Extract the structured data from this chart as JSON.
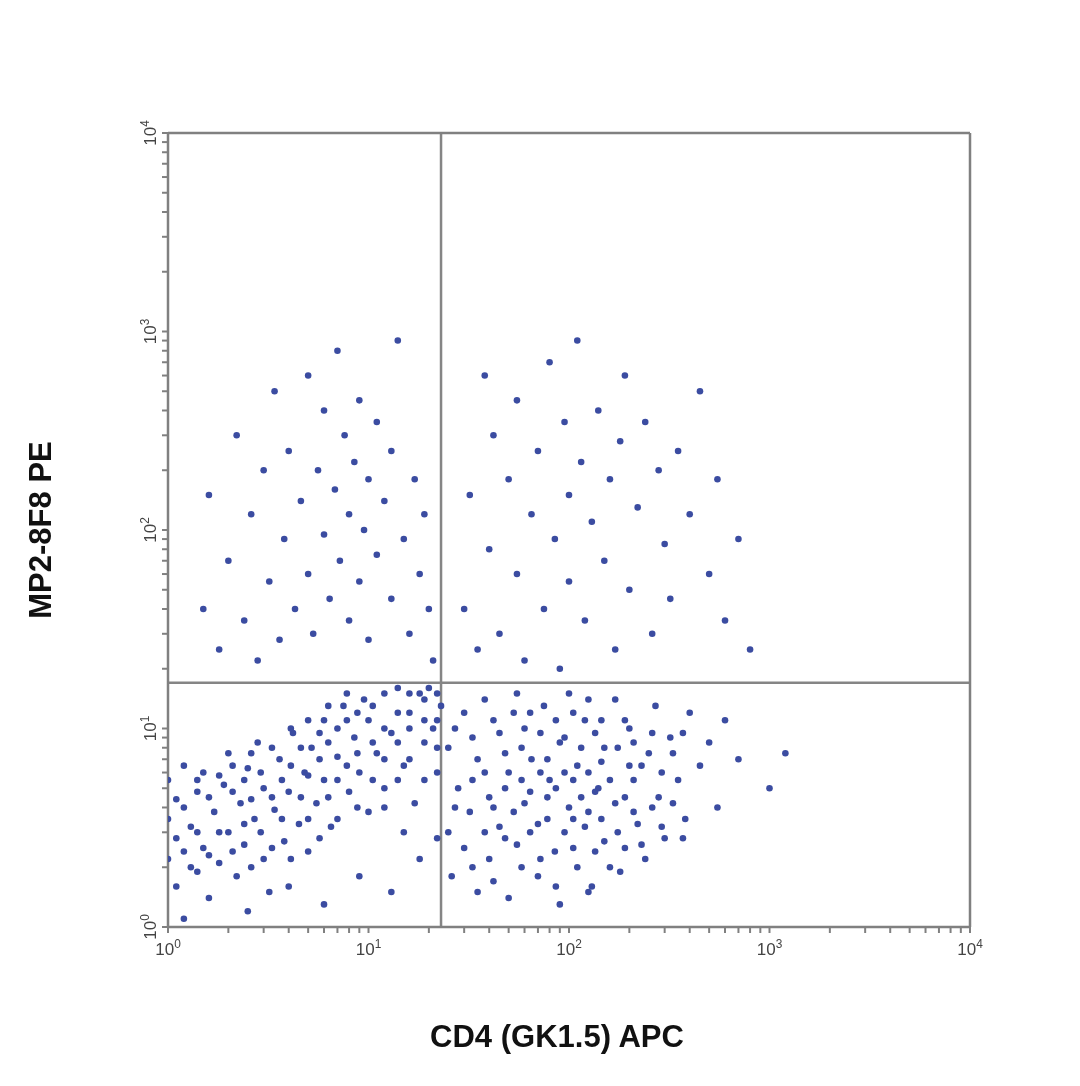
{
  "chart_data": {
    "type": "scatter",
    "xlabel": "CD4 (GK1.5) APC",
    "ylabel": "MP2-8F8 PE",
    "log": "xy",
    "marker": "circle",
    "xlim": [
      1,
      10000
    ],
    "ylim": [
      1,
      10000
    ],
    "xticks": [
      {
        "value": 1,
        "label": "10$^{0}$"
      },
      {
        "value": 2,
        "label": null
      },
      {
        "value": 3,
        "label": null
      },
      {
        "value": 4,
        "label": null
      },
      {
        "value": 5,
        "label": null
      },
      {
        "value": 6,
        "label": null
      },
      {
        "value": 7,
        "label": null
      },
      {
        "value": 8,
        "label": null
      },
      {
        "value": 9,
        "label": null
      },
      {
        "value": 10,
        "label": "10$^{1}$"
      },
      {
        "value": 20,
        "label": null
      },
      {
        "value": 30,
        "label": null
      },
      {
        "value": 40,
        "label": null
      },
      {
        "value": 50,
        "label": null
      },
      {
        "value": 60,
        "label": null
      },
      {
        "value": 70,
        "label": null
      },
      {
        "value": 80,
        "label": null
      },
      {
        "value": 90,
        "label": null
      },
      {
        "value": 100,
        "label": "10$^{2}$"
      },
      {
        "value": 200,
        "label": null
      },
      {
        "value": 300,
        "label": null
      },
      {
        "value": 400,
        "label": null
      },
      {
        "value": 500,
        "label": null
      },
      {
        "value": 600,
        "label": null
      },
      {
        "value": 700,
        "label": null
      },
      {
        "value": 800,
        "label": null
      },
      {
        "value": 900,
        "label": null
      },
      {
        "value": 1000,
        "label": "10$^{3}$"
      },
      {
        "value": 2000,
        "label": null
      },
      {
        "value": 3000,
        "label": null
      },
      {
        "value": 4000,
        "label": null
      },
      {
        "value": 5000,
        "label": null
      },
      {
        "value": 6000,
        "label": null
      },
      {
        "value": 7000,
        "label": null
      },
      {
        "value": 8000,
        "label": null
      },
      {
        "value": 9000,
        "label": null
      },
      {
        "value": 10000,
        "label": "10$^{4}$"
      }
    ],
    "yticks": [
      {
        "value": 1,
        "label": "10$^{0}$"
      },
      {
        "value": 2,
        "label": null
      },
      {
        "value": 3,
        "label": null
      },
      {
        "value": 4,
        "label": null
      },
      {
        "value": 5,
        "label": null
      },
      {
        "value": 6,
        "label": null
      },
      {
        "value": 7,
        "label": null
      },
      {
        "value": 8,
        "label": null
      },
      {
        "value": 9,
        "label": null
      },
      {
        "value": 10,
        "label": "10$^{1}$"
      },
      {
        "value": 20,
        "label": null
      },
      {
        "value": 30,
        "label": null
      },
      {
        "value": 40,
        "label": null
      },
      {
        "value": 50,
        "label": null
      },
      {
        "value": 60,
        "label": null
      },
      {
        "value": 70,
        "label": null
      },
      {
        "value": 80,
        "label": null
      },
      {
        "value": 90,
        "label": null
      },
      {
        "value": 100,
        "label": "10$^{2}$"
      },
      {
        "value": 200,
        "label": null
      },
      {
        "value": 300,
        "label": null
      },
      {
        "value": 400,
        "label": null
      },
      {
        "value": 500,
        "label": null
      },
      {
        "value": 600,
        "label": null
      },
      {
        "value": 700,
        "label": null
      },
      {
        "value": 800,
        "label": null
      },
      {
        "value": 900,
        "label": null
      },
      {
        "value": 1000,
        "label": "10$^{3}$"
      },
      {
        "value": 2000,
        "label": null
      },
      {
        "value": 3000,
        "label": null
      },
      {
        "value": 4000,
        "label": null
      },
      {
        "value": 5000,
        "label": null
      },
      {
        "value": 6000,
        "label": null
      },
      {
        "value": 7000,
        "label": null
      },
      {
        "value": 8000,
        "label": null
      },
      {
        "value": 9000,
        "label": null
      },
      {
        "value": 10000,
        "label": "10$^{4}$"
      }
    ],
    "ref_lines": [
      {
        "axis": "x",
        "value": 23,
        "color": "#858585"
      },
      {
        "axis": "y",
        "value": 17,
        "color": "#858585"
      }
    ],
    "series": [
      {
        "color": "#3b4ca1",
        "x": [
          1.0,
          1.0,
          1.0,
          1.1,
          1.1,
          1.1,
          1.2,
          1.3,
          1.3,
          1.4,
          1.5,
          1.5,
          1.6,
          1.7,
          1.8,
          1.9,
          2.0,
          2.0,
          2.2,
          2.3,
          2.4,
          2.5,
          2.7,
          2.8,
          3.0,
          3.0,
          3.2,
          3.4,
          3.6,
          3.8,
          4.0,
          4.2,
          4.5,
          4.8,
          5.0,
          5.2,
          5.5,
          6.0,
          6.0,
          6.5,
          7.0,
          7.5,
          8.0,
          8.5,
          9.0,
          9.5,
          10,
          10,
          11,
          12,
          12,
          13,
          14,
          15,
          16,
          17,
          18,
          19,
          20,
          21,
          22,
          23,
          1.2,
          2.5,
          4.0,
          6.0,
          9,
          13,
          18,
          22,
          15,
          1.2,
          1.2,
          1.4,
          1.4,
          1.4,
          1.6,
          1.6,
          1.8,
          1.8,
          2.1,
          2.1,
          2.1,
          2.4,
          2.4,
          2.6,
          2.6,
          2.6,
          2.9,
          2.9,
          3.3,
          3.3,
          3.3,
          3.7,
          3.7,
          4.1,
          4.1,
          4.1,
          4.6,
          4.6,
          5.0,
          5.0,
          5.0,
          5.7,
          5.7,
          5.7,
          6.3,
          6.3,
          6.3,
          7.0,
          7.0,
          7.0,
          7.8,
          7.8,
          7.8,
          8.8,
          8.8,
          8.8,
          10.5,
          10.5,
          10.5,
          12,
          12,
          12,
          14,
          14,
          14,
          16,
          16,
          16,
          19,
          19,
          19,
          22,
          22,
          22
        ],
        "values": [
          2.2,
          3.5,
          5.5,
          1.6,
          2.8,
          4.4,
          6.5,
          2.0,
          3.2,
          4.8,
          2.5,
          6.0,
          1.4,
          3.8,
          2.1,
          5.2,
          7.5,
          3.0,
          1.8,
          4.2,
          2.6,
          6.3,
          3.5,
          8.5,
          2.2,
          5.0,
          1.5,
          3.9,
          7.0,
          2.7,
          4.8,
          9.5,
          3.3,
          6.0,
          2.4,
          8.0,
          4.2,
          11,
          5.5,
          3.2,
          7.2,
          13,
          4.8,
          9.0,
          6.0,
          14,
          3.8,
          11,
          7.5,
          15,
          5.0,
          9.5,
          16,
          6.5,
          12,
          4.2,
          15,
          8.5,
          16,
          10,
          6.0,
          13,
          1.1,
          1.2,
          1.6,
          1.3,
          1.8,
          1.5,
          2.2,
          2.8,
          3.0,
          2.4,
          4.0,
          1.9,
          3.0,
          5.5,
          2.3,
          4.5,
          3.0,
          5.8,
          2.4,
          4.8,
          6.5,
          3.3,
          5.5,
          2.0,
          4.4,
          7.5,
          3.0,
          6.0,
          2.5,
          4.5,
          8.0,
          3.5,
          5.5,
          2.2,
          6.5,
          10,
          4.5,
          8.0,
          3.5,
          5.8,
          11,
          2.8,
          7.0,
          9.5,
          4.5,
          8.5,
          13,
          3.5,
          5.5,
          10,
          6.5,
          11,
          15,
          4.0,
          7.5,
          12,
          5.5,
          8.5,
          13,
          4.0,
          7.0,
          10,
          5.5,
          8.5,
          12,
          7.0,
          10,
          15,
          5.5,
          11,
          14,
          8.0,
          11,
          15
        ]
      },
      {
        "color": "#3b4ca1",
        "x": [
          1.5,
          1.6,
          1.8,
          2.0,
          2.2,
          2.4,
          2.6,
          2.8,
          3.0,
          3.2,
          3.4,
          3.6,
          3.8,
          4.0,
          4.3,
          4.6,
          5.0,
          5.0,
          5.3,
          5.6,
          6.0,
          6.0,
          6.4,
          6.8,
          7.0,
          7.2,
          7.6,
          8.0,
          8.0,
          8.5,
          9.0,
          9.0,
          9.5,
          10,
          10,
          11,
          11,
          12,
          13,
          13,
          14,
          15,
          16,
          17,
          18,
          19,
          20,
          21
        ],
        "values": [
          40,
          150,
          25,
          70,
          300,
          35,
          120,
          22,
          200,
          55,
          500,
          28,
          90,
          250,
          40,
          140,
          600,
          60,
          30,
          200,
          95,
          400,
          45,
          160,
          800,
          70,
          300,
          120,
          35,
          220,
          55,
          450,
          100,
          180,
          28,
          75,
          350,
          140,
          45,
          250,
          900,
          90,
          30,
          180,
          60,
          120,
          40,
          22
        ]
      },
      {
        "color": "#3b4ca1",
        "x": [
          25,
          25,
          26,
          28,
          30,
          30,
          32,
          35,
          35,
          38,
          40,
          40,
          45,
          45,
          50,
          50,
          55,
          55,
          60,
          60,
          65,
          70,
          70,
          75,
          80,
          85,
          90,
          90,
          100,
          100,
          110,
          110,
          120,
          120,
          130,
          140,
          150,
          150,
          170,
          170,
          180,
          200,
          200,
          220,
          240,
          250,
          270,
          280,
          300,
          320,
          350,
          380,
          400,
          450,
          500,
          550,
          600,
          700,
          1000,
          1200,
          27,
          27,
          33,
          33,
          33,
          38,
          38,
          42,
          42,
          42,
          48,
          48,
          48,
          53,
          53,
          58,
          58,
          58,
          64,
          64,
          64,
          72,
          72,
          72,
          78,
          78,
          78,
          86,
          86,
          86,
          95,
          95,
          95,
          105,
          105,
          105,
          105,
          115,
          115,
          125,
          125,
          125,
          125,
          135,
          135,
          135,
          145,
          145,
          145,
          160,
          160,
          175,
          175,
          190,
          190,
          190,
          210,
          210,
          210,
          230,
          230,
          260,
          260,
          290,
          290,
          330,
          330,
          370,
          370
        ],
        "values": [
          3.0,
          8.0,
          1.8,
          5.0,
          12,
          2.5,
          3.8,
          7.0,
          1.5,
          14,
          4.5,
          2.2,
          9.5,
          3.2,
          6.0,
          1.4,
          15,
          2.6,
          4.2,
          10,
          7.0,
          1.8,
          3.3,
          13,
          5.5,
          2.4,
          8.5,
          1.3,
          4.0,
          15,
          6.5,
          2.0,
          11,
          3.2,
          1.6,
          5.0,
          8.0,
          2.7,
          14,
          4.2,
          1.9,
          6.5,
          10,
          3.3,
          2.2,
          7.5,
          13,
          4.5,
          2.8,
          9.0,
          5.5,
          3.5,
          12,
          6.5,
          8.5,
          4.0,
          11,
          7.0,
          5.0,
          7.5,
          4.0,
          10,
          2.0,
          5.5,
          9.0,
          3.0,
          6.0,
          1.7,
          4.0,
          11,
          2.8,
          5.0,
          7.5,
          3.8,
          12,
          2.0,
          5.5,
          8.0,
          3.0,
          4.8,
          12,
          2.2,
          6.0,
          9.5,
          3.5,
          4.5,
          7.0,
          1.6,
          5.0,
          11,
          3.0,
          6.0,
          9.0,
          2.5,
          3.5,
          5.5,
          12,
          4.5,
          8.0,
          1.5,
          3.8,
          6.0,
          14,
          2.4,
          4.8,
          9.5,
          3.5,
          6.8,
          11,
          2.0,
          5.5,
          3.0,
          8.0,
          4.5,
          11,
          2.5,
          3.8,
          5.5,
          8.5,
          2.6,
          6.5,
          4.0,
          9.5,
          3.2,
          6.0,
          4.2,
          7.5,
          2.8,
          9.5
        ]
      },
      {
        "color": "#3b4ca1",
        "x": [
          30,
          32,
          35,
          38,
          40,
          42,
          45,
          50,
          55,
          55,
          60,
          65,
          70,
          75,
          80,
          85,
          90,
          95,
          100,
          100,
          110,
          115,
          120,
          130,
          140,
          150,
          160,
          170,
          180,
          190,
          200,
          220,
          240,
          260,
          280,
          300,
          320,
          350,
          400,
          450,
          500,
          550,
          600,
          700,
          800
        ],
        "values": [
          40,
          150,
          25,
          600,
          80,
          300,
          30,
          180,
          60,
          450,
          22,
          120,
          250,
          40,
          700,
          90,
          20,
          350,
          150,
          55,
          900,
          220,
          35,
          110,
          400,
          70,
          180,
          25,
          280,
          600,
          50,
          130,
          350,
          30,
          200,
          85,
          45,
          250,
          120,
          500,
          60,
          180,
          35,
          90,
          25
        ]
      }
    ]
  }
}
